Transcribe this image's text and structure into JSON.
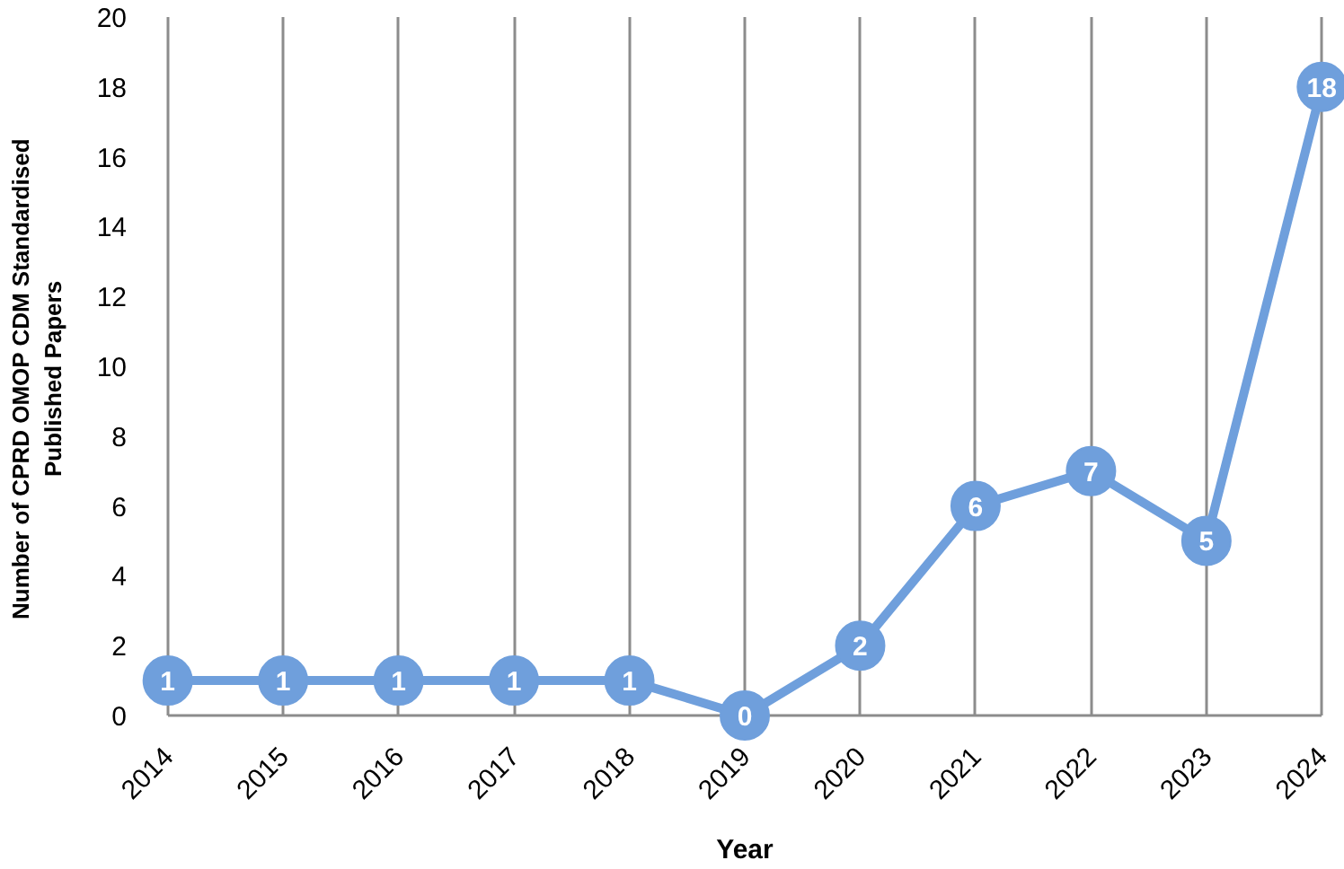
{
  "chart_data": {
    "type": "line",
    "xlabel": "Year",
    "ylabel": "Number of CPRD OMOP CDM Standardised Published Papers",
    "categories": [
      "2014",
      "2015",
      "2016",
      "2017",
      "2018",
      "2019",
      "2020",
      "2021",
      "2022",
      "2023",
      "2024"
    ],
    "series": [
      {
        "color": "#6f9fdc",
        "values": [
          1,
          1,
          1,
          1,
          1,
          0,
          2,
          6,
          7,
          5,
          18
        ]
      }
    ],
    "ylim": [
      0,
      20
    ],
    "yticks": [
      0,
      2,
      4,
      6,
      8,
      10,
      12,
      14,
      16,
      18,
      20
    ],
    "grid": "x",
    "marker": "circle",
    "line_style": "solid",
    "data_labels": true
  }
}
